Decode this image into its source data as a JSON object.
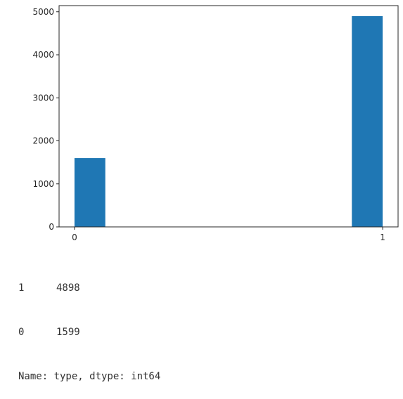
{
  "chart_data": {
    "type": "bar",
    "title": "",
    "xlabel": "",
    "ylabel": "",
    "x_ticks": [
      "0",
      "1"
    ],
    "y_ticks": [
      "0",
      "1000",
      "2000",
      "3000",
      "4000",
      "5000"
    ],
    "xlim": [
      -0.05,
      1.05
    ],
    "ylim": [
      0,
      5142.9
    ],
    "bars": [
      {
        "x_start": 0.0,
        "x_end": 0.1,
        "value": 1599
      },
      {
        "x_start": 0.9,
        "x_end": 1.0,
        "value": 4898
      }
    ],
    "bar_color": "#1f77b4",
    "grid": false
  },
  "output": {
    "rows": [
      {
        "index": "1",
        "value": "4898"
      },
      {
        "index": "0",
        "value": "1599"
      }
    ],
    "footer": "Name: type, dtype: int64"
  }
}
